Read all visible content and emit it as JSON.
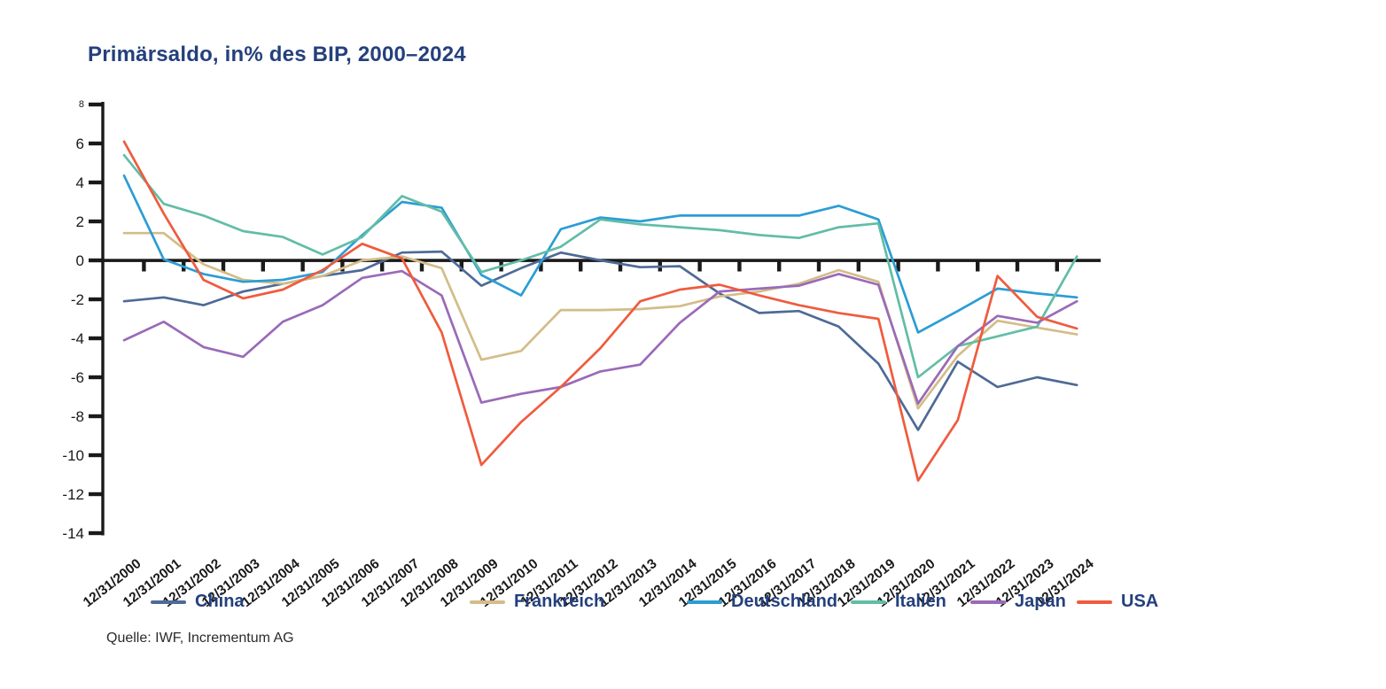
{
  "title": "Primärsaldo, in% des BIP, 2000–2024",
  "source": "Quelle: IWF, Incrementum AG",
  "axis_color": "#1a1a1a",
  "title_color": "#24407d",
  "chart_data": {
    "type": "line",
    "title": "Primärsaldo, in% des BIP, 2000–2024",
    "xlabel": "",
    "ylabel": "",
    "ylim": [
      -14,
      8
    ],
    "ytick_step": 2,
    "ytick_labels": [
      "8",
      "6",
      "4",
      "2",
      "0",
      "-2",
      "-4",
      "-6",
      "-8",
      "-10",
      "-12",
      "-14"
    ],
    "grid": false,
    "legend_position": "bottom",
    "x": [
      "12/31/2000",
      "12/31/2001",
      "12/31/2002",
      "12/31/2003",
      "12/31/2004",
      "12/31/2005",
      "12/31/2006",
      "12/31/2007",
      "12/31/2008",
      "12/31/2009",
      "12/31/2010",
      "12/31/2011",
      "12/31/2012",
      "12/31/2013",
      "12/31/2014",
      "12/31/2015",
      "12/31/2016",
      "12/31/2017",
      "12/31/2018",
      "12/31/2019",
      "12/31/2020",
      "12/31/2021",
      "12/31/2022",
      "12/31/2023",
      "12/31/2024"
    ],
    "series": [
      {
        "name": "China",
        "color": "#4e6a96",
        "values": [
          -2.1,
          -1.9,
          -2.3,
          -1.6,
          -1.2,
          -0.8,
          -0.5,
          0.4,
          0.45,
          -1.3,
          -0.4,
          0.4,
          0.0,
          -0.35,
          -0.3,
          -1.7,
          -2.7,
          -2.6,
          -3.4,
          -5.3,
          -8.7,
          -5.2,
          -6.5,
          -6.0,
          -6.4
        ]
      },
      {
        "name": "Frankreich",
        "color": "#d3bd88",
        "values": [
          1.4,
          1.4,
          -0.2,
          -1.0,
          -1.2,
          -0.8,
          0.0,
          0.2,
          -0.4,
          -5.1,
          -4.65,
          -2.55,
          -2.55,
          -2.5,
          -2.35,
          -1.85,
          -1.6,
          -1.2,
          -0.5,
          -1.1,
          -7.6,
          -4.9,
          -3.1,
          -3.45,
          -3.8
        ]
      },
      {
        "name": "Deutschland",
        "color": "#2b9dd4",
        "values": [
          4.35,
          0.05,
          -0.7,
          -1.1,
          -1.0,
          -0.6,
          1.3,
          3.0,
          2.7,
          -0.75,
          -1.8,
          1.6,
          2.2,
          2.0,
          2.3,
          2.3,
          2.3,
          2.3,
          2.8,
          2.1,
          -3.7,
          -2.6,
          -1.45,
          -1.7,
          -1.9
        ]
      },
      {
        "name": "Italien",
        "color": "#62bda6",
        "values": [
          5.4,
          2.9,
          2.3,
          1.5,
          1.2,
          0.3,
          1.2,
          3.3,
          2.5,
          -0.6,
          0.0,
          0.7,
          2.1,
          1.85,
          1.7,
          1.55,
          1.3,
          1.15,
          1.7,
          1.9,
          -6.0,
          -4.4,
          -3.9,
          -3.4,
          0.2
        ]
      },
      {
        "name": "Japan",
        "color": "#9a6ab8",
        "values": [
          -4.1,
          -3.15,
          -4.45,
          -4.95,
          -3.15,
          -2.3,
          -0.9,
          -0.55,
          -1.8,
          -7.3,
          -6.85,
          -6.5,
          -5.7,
          -5.35,
          -3.2,
          -1.6,
          -1.45,
          -1.3,
          -0.7,
          -1.25,
          -7.35,
          -4.4,
          -2.85,
          -3.2,
          -2.1
        ]
      },
      {
        "name": "USA",
        "color": "#ef5b3e",
        "values": [
          6.1,
          2.4,
          -1.0,
          -1.95,
          -1.5,
          -0.5,
          0.85,
          0.1,
          -3.7,
          -10.5,
          -8.3,
          -6.5,
          -4.5,
          -2.1,
          -1.5,
          -1.25,
          -1.8,
          -2.3,
          -2.7,
          -3.0,
          -11.3,
          -8.2,
          -0.8,
          -2.9,
          -3.5
        ]
      }
    ]
  }
}
